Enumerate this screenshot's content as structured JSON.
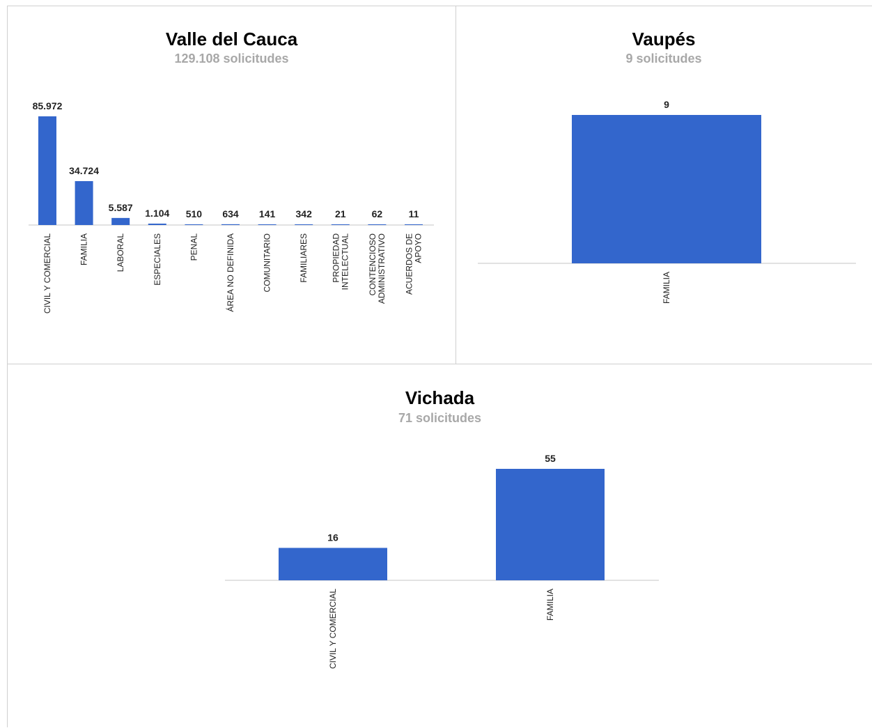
{
  "chart_data": [
    {
      "type": "bar",
      "title": "Valle del Cauca",
      "subtitle": "129.108 solicitudes",
      "categories": [
        [
          "CIVIL Y COMERCIAL"
        ],
        [
          "FAMILIA"
        ],
        [
          "LABORAL"
        ],
        [
          "ESPECIALES"
        ],
        [
          "PENAL"
        ],
        [
          "ÁREA NO DEFINIDA"
        ],
        [
          "COMUNITARIO"
        ],
        [
          "FAMILIARES"
        ],
        [
          "PROPIEDAD",
          "INTELECTUAL"
        ],
        [
          "CONTENCIOSO",
          "ADMINISTRATIVO"
        ],
        [
          "ACUERDOS DE",
          "APOYO"
        ]
      ],
      "values": [
        85972,
        34724,
        5587,
        1104,
        510,
        634,
        141,
        342,
        21,
        62,
        11
      ],
      "value_labels": [
        "85.972",
        "34.724",
        "5.587",
        "1.104",
        "510",
        "634",
        "141",
        "342",
        "21",
        "62",
        "11"
      ],
      "ylim": [
        0,
        85972
      ],
      "color": "#3366cc",
      "grid": false
    },
    {
      "type": "bar",
      "title": "Vaupés",
      "subtitle": "9 solicitudes",
      "categories": [
        [
          "FAMILIA"
        ]
      ],
      "values": [
        9
      ],
      "value_labels": [
        "9"
      ],
      "ylim": [
        0,
        9
      ],
      "color": "#3366cc",
      "grid": false
    },
    {
      "type": "bar",
      "title": "Vichada",
      "subtitle": "71 solicitudes",
      "categories": [
        [
          "CIVIL Y COMERCIAL"
        ],
        [
          "FAMILIA"
        ]
      ],
      "values": [
        16,
        55
      ],
      "value_labels": [
        "16",
        "55"
      ],
      "ylim": [
        0,
        55
      ],
      "color": "#3366cc",
      "grid": false
    }
  ]
}
